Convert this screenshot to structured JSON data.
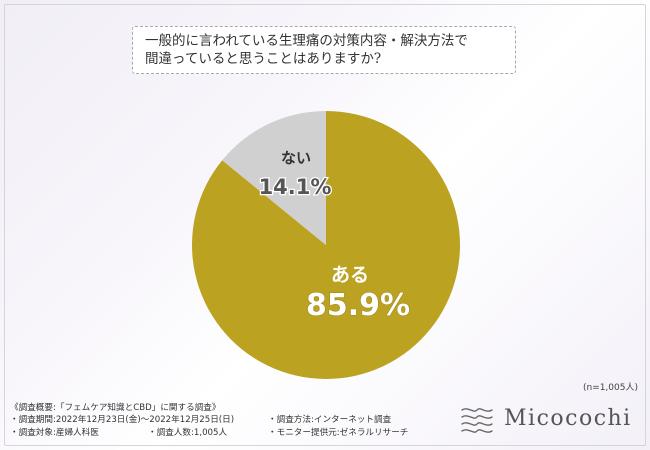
{
  "chart_data": {
    "type": "pie",
    "title": "一般的に言われている生理痛の対策内容・解決方法で間違っていると思うことはありますか?",
    "categories": [
      "ある",
      "ない"
    ],
    "values": [
      85.9,
      14.1
    ],
    "colors": [
      "#bca221",
      "#d0d0d0"
    ],
    "sample_size": "(n=1,005人)"
  },
  "question": {
    "line1": "一般的に言われている生理痛の対策内容・解決方法で",
    "line2": "間違っていると思うことはありますか?"
  },
  "slices": [
    {
      "label": "ある",
      "value_text": "85.9%"
    },
    {
      "label": "ない",
      "value_text": "14.1%"
    }
  ],
  "footer": {
    "overview": "《調査概要:「フェムケア知識とCBD」に関する調査》",
    "period": "・調査期間:2022年12月23日(金)〜2022年12月25日(日)",
    "method": "・調査方法:インターネット調査",
    "target": "・調査対象:産婦人科医",
    "count": "・調査人数:1,005人",
    "provider": "・モニター提供元:ゼネラルリサーチ"
  },
  "logo": {
    "text": "Micocochi",
    "icon": "micocochi-logo-icon"
  }
}
